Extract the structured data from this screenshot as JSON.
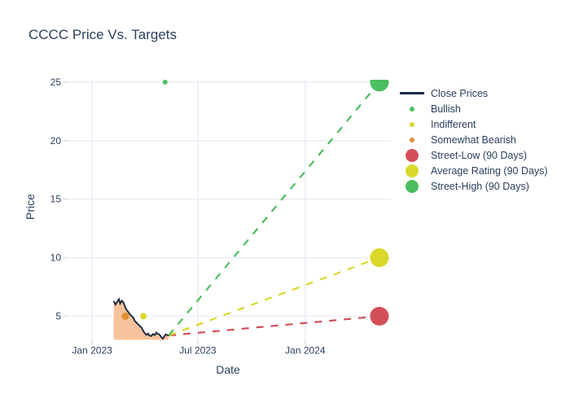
{
  "chart_data": {
    "type": "line",
    "title": "CCCC Price Vs. Targets",
    "xlabel": "Date",
    "ylabel": "Price",
    "colors": {
      "text": "#2a3f5f",
      "grid": "#e9eef6",
      "tick": "#d5dce8",
      "close_line": "#1e2d42",
      "close_fill": "#f8c39c",
      "bullish": "#4cbe5f",
      "indifferent": "#d9d829",
      "somewhat_bearish": "#e0912f",
      "street_low": "#d34f57",
      "average_rating": "#d9d829",
      "street_high": "#4cbe5f"
    },
    "grid": true,
    "legend_position": "right",
    "x_range": [
      "2022-11-20",
      "2024-05-28"
    ],
    "y_range": [
      2.98,
      25.2
    ],
    "x_ticks": [
      {
        "date": "2023-01-01",
        "label": "Jan 2023"
      },
      {
        "date": "2023-07-01",
        "label": "Jul 2023"
      },
      {
        "date": "2024-01-01",
        "label": "Jan 2024"
      }
    ],
    "y_ticks": [
      {
        "value": 5,
        "label": "5"
      },
      {
        "value": 10,
        "label": "10"
      },
      {
        "value": 15,
        "label": "15"
      },
      {
        "value": 20,
        "label": "20"
      },
      {
        "value": 25,
        "label": "25"
      }
    ],
    "close_prices": {
      "name": "Close Prices",
      "points": [
        [
          "2023-02-07",
          6.3
        ],
        [
          "2023-02-10",
          6.0
        ],
        [
          "2023-02-13",
          6.22
        ],
        [
          "2023-02-16",
          6.45
        ],
        [
          "2023-02-18",
          6.08
        ],
        [
          "2023-02-21",
          6.32
        ],
        [
          "2023-02-24",
          6.15
        ],
        [
          "2023-02-27",
          5.72
        ],
        [
          "2023-03-01",
          5.55
        ],
        [
          "2023-03-04",
          5.35
        ],
        [
          "2023-03-07",
          5.15
        ],
        [
          "2023-03-10",
          5.0
        ],
        [
          "2023-03-13",
          4.85
        ],
        [
          "2023-03-15",
          4.6
        ],
        [
          "2023-03-18",
          4.45
        ],
        [
          "2023-03-21",
          4.3
        ],
        [
          "2023-03-24",
          4.15
        ],
        [
          "2023-03-27",
          4.0
        ],
        [
          "2023-03-29",
          3.8
        ],
        [
          "2023-04-01",
          3.55
        ],
        [
          "2023-04-04",
          3.4
        ],
        [
          "2023-04-07",
          3.52
        ],
        [
          "2023-04-09",
          3.35
        ],
        [
          "2023-04-12",
          3.3
        ],
        [
          "2023-04-15",
          3.47
        ],
        [
          "2023-04-18",
          3.38
        ],
        [
          "2023-04-21",
          3.6
        ],
        [
          "2023-04-23",
          3.5
        ],
        [
          "2023-04-26",
          3.45
        ],
        [
          "2023-04-29",
          3.25
        ],
        [
          "2023-05-02",
          3.08
        ],
        [
          "2023-05-05",
          3.3
        ],
        [
          "2023-05-07",
          3.45
        ],
        [
          "2023-05-10",
          3.38
        ],
        [
          "2023-05-12",
          3.35
        ]
      ]
    },
    "ratings": [
      {
        "name": "Bullish",
        "color_key": "bullish",
        "date": "2023-05-06",
        "price": 25,
        "r": 3
      },
      {
        "name": "Indifferent",
        "color_key": "indifferent",
        "date": "2023-03-30",
        "price": 5,
        "r": 4
      },
      {
        "name": "Somewhat Bearish",
        "color_key": "somewhat_bearish",
        "date": "2023-02-27",
        "price": 5,
        "r": 4.5
      }
    ],
    "targets": [
      {
        "name": "Street-Low (90 Days)",
        "color_key": "street_low",
        "date": "2024-05-07",
        "price": 5,
        "r": 11.5
      },
      {
        "name": "Average Rating (90 Days)",
        "color_key": "average_rating",
        "date": "2024-05-07",
        "price": 10,
        "r": 11.5
      },
      {
        "name": "Street-High (90 Days)",
        "color_key": "street_high",
        "date": "2024-05-07",
        "price": 25,
        "r": 11.5
      }
    ],
    "target_lines_start": {
      "date": "2023-05-12",
      "price": 3.35
    },
    "legend": {
      "items": [
        {
          "label": "Close Prices",
          "marker": "line",
          "color_key": "close_line"
        },
        {
          "label": "Bullish",
          "marker": "dot",
          "color_key": "bullish"
        },
        {
          "label": "Indifferent",
          "marker": "dot",
          "color_key": "indifferent"
        },
        {
          "label": "Somewhat Bearish",
          "marker": "dot",
          "color_key": "somewhat_bearish"
        },
        {
          "label": "Street-Low (90 Days)",
          "marker": "circle",
          "color_key": "street_low"
        },
        {
          "label": "Average Rating (90 Days)",
          "marker": "circle",
          "color_key": "average_rating"
        },
        {
          "label": "Street-High (90 Days)",
          "marker": "circle",
          "color_key": "street_high"
        }
      ]
    }
  }
}
